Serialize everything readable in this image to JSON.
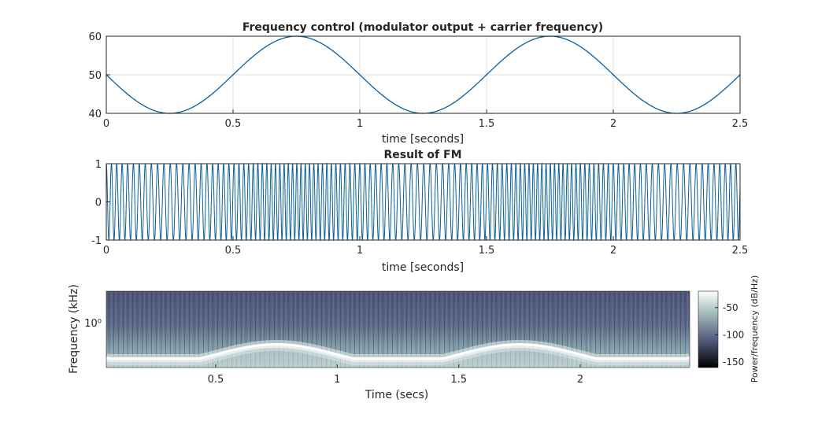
{
  "colors": {
    "line": "#0a5f96",
    "axis": "#262626",
    "grid": "#d9d9d9",
    "background": "#ffffff"
  },
  "chart_data": [
    {
      "type": "line",
      "title": "Frequency control (modulator output + carrier frequency)",
      "xlabel": "time [seconds]",
      "ylabel": "",
      "xlim": [
        0,
        2.5
      ],
      "ylim": [
        40,
        60
      ],
      "xticks": [
        0,
        0.5,
        1,
        1.5,
        2,
        2.5
      ],
      "xtick_labels": [
        "0",
        "0.5",
        "1",
        "1.5",
        "2",
        "2.5"
      ],
      "yticks": [
        40,
        50,
        60
      ],
      "ytick_labels": [
        "40",
        "50",
        "60"
      ],
      "grid": true,
      "series": [
        {
          "x": [
            0,
            0.125,
            0.25,
            0.375,
            0.5,
            0.625,
            0.75,
            0.875,
            1.0,
            1.125,
            1.25,
            1.375,
            1.5,
            1.625,
            1.75,
            1.875,
            2.0,
            2.125,
            2.25,
            2.375,
            2.5
          ],
          "values": [
            50,
            42.9,
            40,
            42.9,
            50,
            57.1,
            60,
            57.1,
            50,
            42.9,
            40,
            42.9,
            50,
            57.1,
            60,
            57.1,
            50,
            42.9,
            40,
            42.9,
            50
          ]
        }
      ]
    },
    {
      "type": "line",
      "title": "Result of FM",
      "xlabel": "time [seconds]",
      "ylabel": "",
      "xlim": [
        0,
        2.5
      ],
      "ylim": [
        -1,
        1
      ],
      "xticks": [
        0,
        0.5,
        1,
        1.5,
        2,
        2.5
      ],
      "xtick_labels": [
        "0",
        "0.5",
        "1",
        "1.5",
        "2",
        "2.5"
      ],
      "yticks": [
        -1,
        0,
        1
      ],
      "ytick_labels": [
        "-1",
        "0",
        "1"
      ],
      "grid": false,
      "carrier_frequency_hz": 50,
      "modulation_frequency_hz": 1,
      "frequency_deviation_hz": 10
    },
    {
      "type": "heatmap",
      "title": "",
      "xlabel": "Time (secs)",
      "ylabel": "Frequency (kHz)",
      "xticks": [
        0.5,
        1,
        1.5,
        2
      ],
      "xtick_labels": [
        "0.5",
        "1",
        "1.5",
        "2"
      ],
      "ytick_labels": [
        "10⁰"
      ],
      "xlim": [
        0.05,
        2.45
      ],
      "ridge": {
        "times": [
          0.05,
          0.25,
          0.5,
          0.75,
          1.0,
          1.25,
          1.5,
          1.75,
          2.0,
          2.25,
          2.45
        ],
        "level": [
          0.1,
          0.0,
          0.55,
          1.0,
          0.55,
          0.0,
          0.55,
          1.0,
          0.55,
          0.0,
          0.1
        ]
      },
      "colorbar": {
        "label": "Power/frequency (dB/Hz)",
        "ticks": [
          -50,
          -100,
          -150
        ],
        "tick_labels": [
          "-50",
          "-100",
          "-150"
        ],
        "range": [
          -160,
          -20
        ]
      }
    }
  ]
}
